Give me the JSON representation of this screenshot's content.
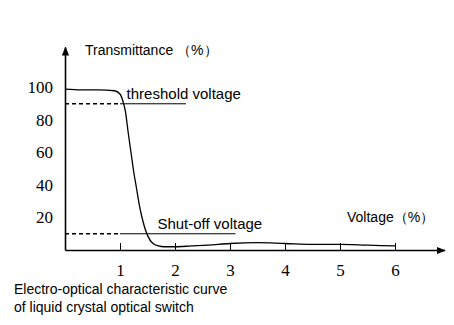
{
  "chart_data": {
    "type": "line",
    "title": [
      "Electro-optical characteristic curve",
      "of liquid crystal optical switch"
    ],
    "y_label": "Transmittance （%）",
    "x_label": "Voltage（%）",
    "x": [
      0,
      0.3,
      0.6,
      0.9,
      1.0,
      1.05,
      1.1,
      1.15,
      1.2,
      1.25,
      1.3,
      1.35,
      1.4,
      1.5,
      1.6,
      1.7,
      1.8,
      2.0,
      2.3,
      2.6,
      3.0,
      3.5,
      4.0,
      4.5,
      5.0,
      5.5,
      6.0
    ],
    "values": [
      99,
      98.5,
      98.5,
      98,
      96,
      92,
      85,
      72,
      60,
      48,
      38,
      28,
      20,
      9,
      4,
      2.5,
      2,
      2,
      2.5,
      3,
      4,
      4.5,
      4,
      3.5,
      3.5,
      3,
      2.5
    ],
    "color": "#000000",
    "xlim": [
      0,
      6.9
    ],
    "xticks": [
      1,
      2,
      3,
      4,
      5,
      6
    ],
    "ylim": [
      0,
      125
    ],
    "yticks": [
      20,
      40,
      60,
      80,
      100
    ],
    "grid": false,
    "annotations": [
      {
        "text": "threshold voltage",
        "x": 1,
        "y": 90,
        "x_end": 2.2,
        "label_x": 1.12
      },
      {
        "text": "Shut-off voltage",
        "x": 1,
        "y": 10,
        "x_end": 3.1,
        "label_x": 1.68
      }
    ]
  }
}
